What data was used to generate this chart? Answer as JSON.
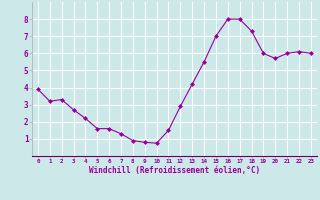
{
  "x": [
    0,
    1,
    2,
    3,
    4,
    5,
    6,
    7,
    8,
    9,
    10,
    11,
    12,
    13,
    14,
    15,
    16,
    17,
    18,
    19,
    20,
    21,
    22,
    23
  ],
  "y": [
    3.9,
    3.2,
    3.3,
    2.7,
    2.2,
    1.6,
    1.6,
    1.3,
    0.9,
    0.8,
    0.75,
    1.5,
    2.9,
    4.2,
    5.5,
    7.0,
    8.0,
    8.0,
    7.3,
    6.0,
    5.7,
    6.0,
    6.1,
    6.0
  ],
  "line_color": "#990099",
  "marker": "D",
  "marker_size": 2.0,
  "bg_color": "#cce8e8",
  "grid_color": "#ffffff",
  "xlabel": "Windchill (Refroidissement éolien,°C)",
  "xlabel_color": "#990099",
  "tick_color": "#990099",
  "ylim": [
    0,
    9
  ],
  "xlim": [
    -0.5,
    23.5
  ],
  "yticks": [
    1,
    2,
    3,
    4,
    5,
    6,
    7,
    8
  ],
  "xticks": [
    0,
    1,
    2,
    3,
    4,
    5,
    6,
    7,
    8,
    9,
    10,
    11,
    12,
    13,
    14,
    15,
    16,
    17,
    18,
    19,
    20,
    21,
    22,
    23
  ],
  "fig_width": 3.2,
  "fig_height": 2.0,
  "dpi": 100
}
